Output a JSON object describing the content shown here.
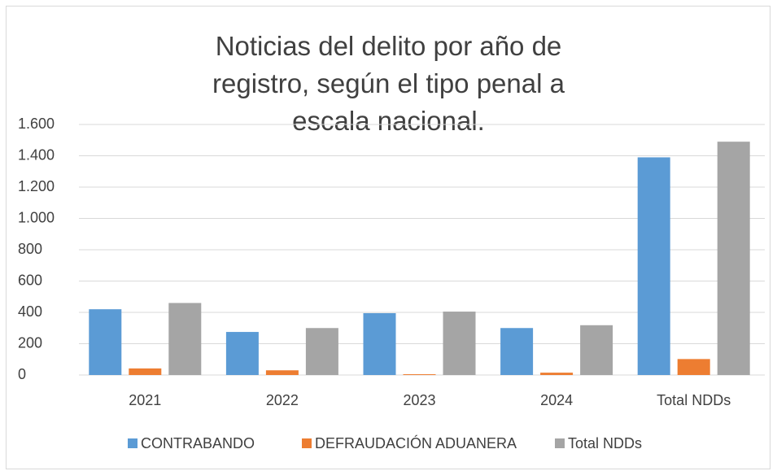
{
  "chart_data": {
    "type": "bar",
    "title": "Noticias del delito por año de registro, según el tipo penal a escala nacional.",
    "categories": [
      "2021",
      "2022",
      "2023",
      "2024",
      "Total NDDs"
    ],
    "series": [
      {
        "name": "CONTRABANDO",
        "color": "#5b9bd5",
        "values": [
          420,
          275,
          395,
          300,
          1390
        ]
      },
      {
        "name": "DEFRAUDACIÓN ADUANERA",
        "color": "#ed7d31",
        "values": [
          42,
          30,
          5,
          15,
          102
        ]
      },
      {
        "name": "Total NDDs",
        "color": "#a5a5a5",
        "values": [
          460,
          300,
          405,
          318,
          1490
        ]
      }
    ],
    "ylim": [
      0,
      1600
    ],
    "yticks": [
      0,
      200,
      400,
      600,
      800,
      {
        "value": 1000,
        "label": "1.000"
      },
      {
        "value": 1200,
        "label": "1.200"
      },
      {
        "value": 1400,
        "label": "1.400"
      },
      {
        "value": 1600,
        "label": "1.600"
      }
    ],
    "grid": true,
    "legend": "bottom"
  }
}
